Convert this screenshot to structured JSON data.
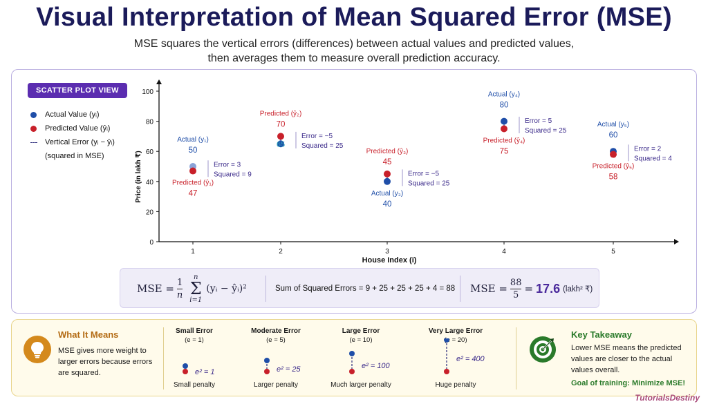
{
  "title": "Visual Interpretation of Mean Squared Error (MSE)",
  "subtitle_line1": "MSE squares the vertical errors (differences) between actual values and predicted values,",
  "subtitle_line2": "then averages them to measure overall prediction accuracy.",
  "badge": "SCATTER PLOT VIEW",
  "legend": {
    "actual": "Actual Value (yᵢ)",
    "predicted": "Predicted Value (ŷᵢ)",
    "error": "Vertical Error (yᵢ − ŷᵢ)",
    "error_note": "(squared in MSE)"
  },
  "colors": {
    "actual": "#1f4ea8",
    "predicted": "#c8202a",
    "accent": "#5b2db0",
    "error_text": "#3b2a8a"
  },
  "chart_data": {
    "type": "scatter",
    "xlabel": "House Index (i)",
    "ylabel": "Price (in lakh ₹)",
    "ylim": [
      0,
      100
    ],
    "yticks": [
      "0",
      "20",
      "40",
      "60",
      "80",
      "100"
    ],
    "categories": [
      "1",
      "2",
      "3",
      "4",
      "5"
    ],
    "points": [
      {
        "i": 1,
        "actual": 50,
        "predicted": 47,
        "actual_label": "Actual (y₁)",
        "actual_val": "50",
        "pred_label": "Predicted (ŷ₁)",
        "pred_val": "47",
        "error_text": "Error = 3",
        "squared_text": "Squared = 9"
      },
      {
        "i": 2,
        "actual": 65,
        "predicted": 70,
        "actual_label": "",
        "actual_val": "65",
        "pred_label": "Predicted (ŷ₂)",
        "pred_val": "70",
        "error_text": "Error = −5",
        "squared_text": "Squared = 25"
      },
      {
        "i": 3,
        "actual": 40,
        "predicted": 45,
        "actual_label": "Actual (y₃)",
        "actual_val": "40",
        "pred_label": "Predicted (ŷ₃)",
        "pred_val": "45",
        "error_text": "Error = −5",
        "squared_text": "Squared = 25"
      },
      {
        "i": 4,
        "actual": 80,
        "predicted": 75,
        "actual_label": "Actual (y₄)",
        "actual_val": "80",
        "pred_label": "Predicted (ŷ₄)",
        "pred_val": "75",
        "error_text": "Error = 5",
        "squared_text": "Squared = 25"
      },
      {
        "i": 5,
        "actual": 60,
        "predicted": 58,
        "actual_label": "Actual (y₅)",
        "actual_val": "60",
        "pred_label": "Predicted (ŷ₅)",
        "pred_val": "58",
        "error_text": "Error = 2",
        "squared_text": "Squared = 4"
      }
    ]
  },
  "formula": {
    "mse": "MSE =",
    "frac_num": "1",
    "frac_den": "n",
    "sum_top": "n",
    "sum_bottom": "i=1",
    "expr": "(yᵢ − ŷᵢ)²",
    "sse": "Sum of Squared Errors = 9 + 25 + 25 + 25 + 4 = 88",
    "mse2": "MSE =",
    "num2": "88",
    "den2": "5",
    "eq": "=",
    "value": "17.6",
    "unit": "(lakh² ₹)"
  },
  "what_it_means": {
    "title": "What It Means",
    "text": "MSE gives more weight to larger errors because errors are squared."
  },
  "error_scale": [
    {
      "name": "Small Error",
      "e": "(e = 1)",
      "sq": "e² = 1",
      "penalty": "Small penalty",
      "len": 1
    },
    {
      "name": "Moderate Error",
      "e": "(e = 5)",
      "sq": "e² = 25",
      "penalty": "Larger penalty",
      "len": 5
    },
    {
      "name": "Large Error",
      "e": "(e = 10)",
      "sq": "e² = 100",
      "penalty": "Much larger penalty",
      "len": 10
    },
    {
      "name": "Very Large Error",
      "e": "(e = 20)",
      "sq": "e² = 400",
      "penalty": "Huge penalty",
      "len": 20
    }
  ],
  "key_takeaway": {
    "title": "Key Takeaway",
    "text": "Lower MSE means the predicted values are closer to the actual values overall.",
    "goal": "Goal of training: Minimize MSE!"
  },
  "brand": "TutorialsDestiny"
}
